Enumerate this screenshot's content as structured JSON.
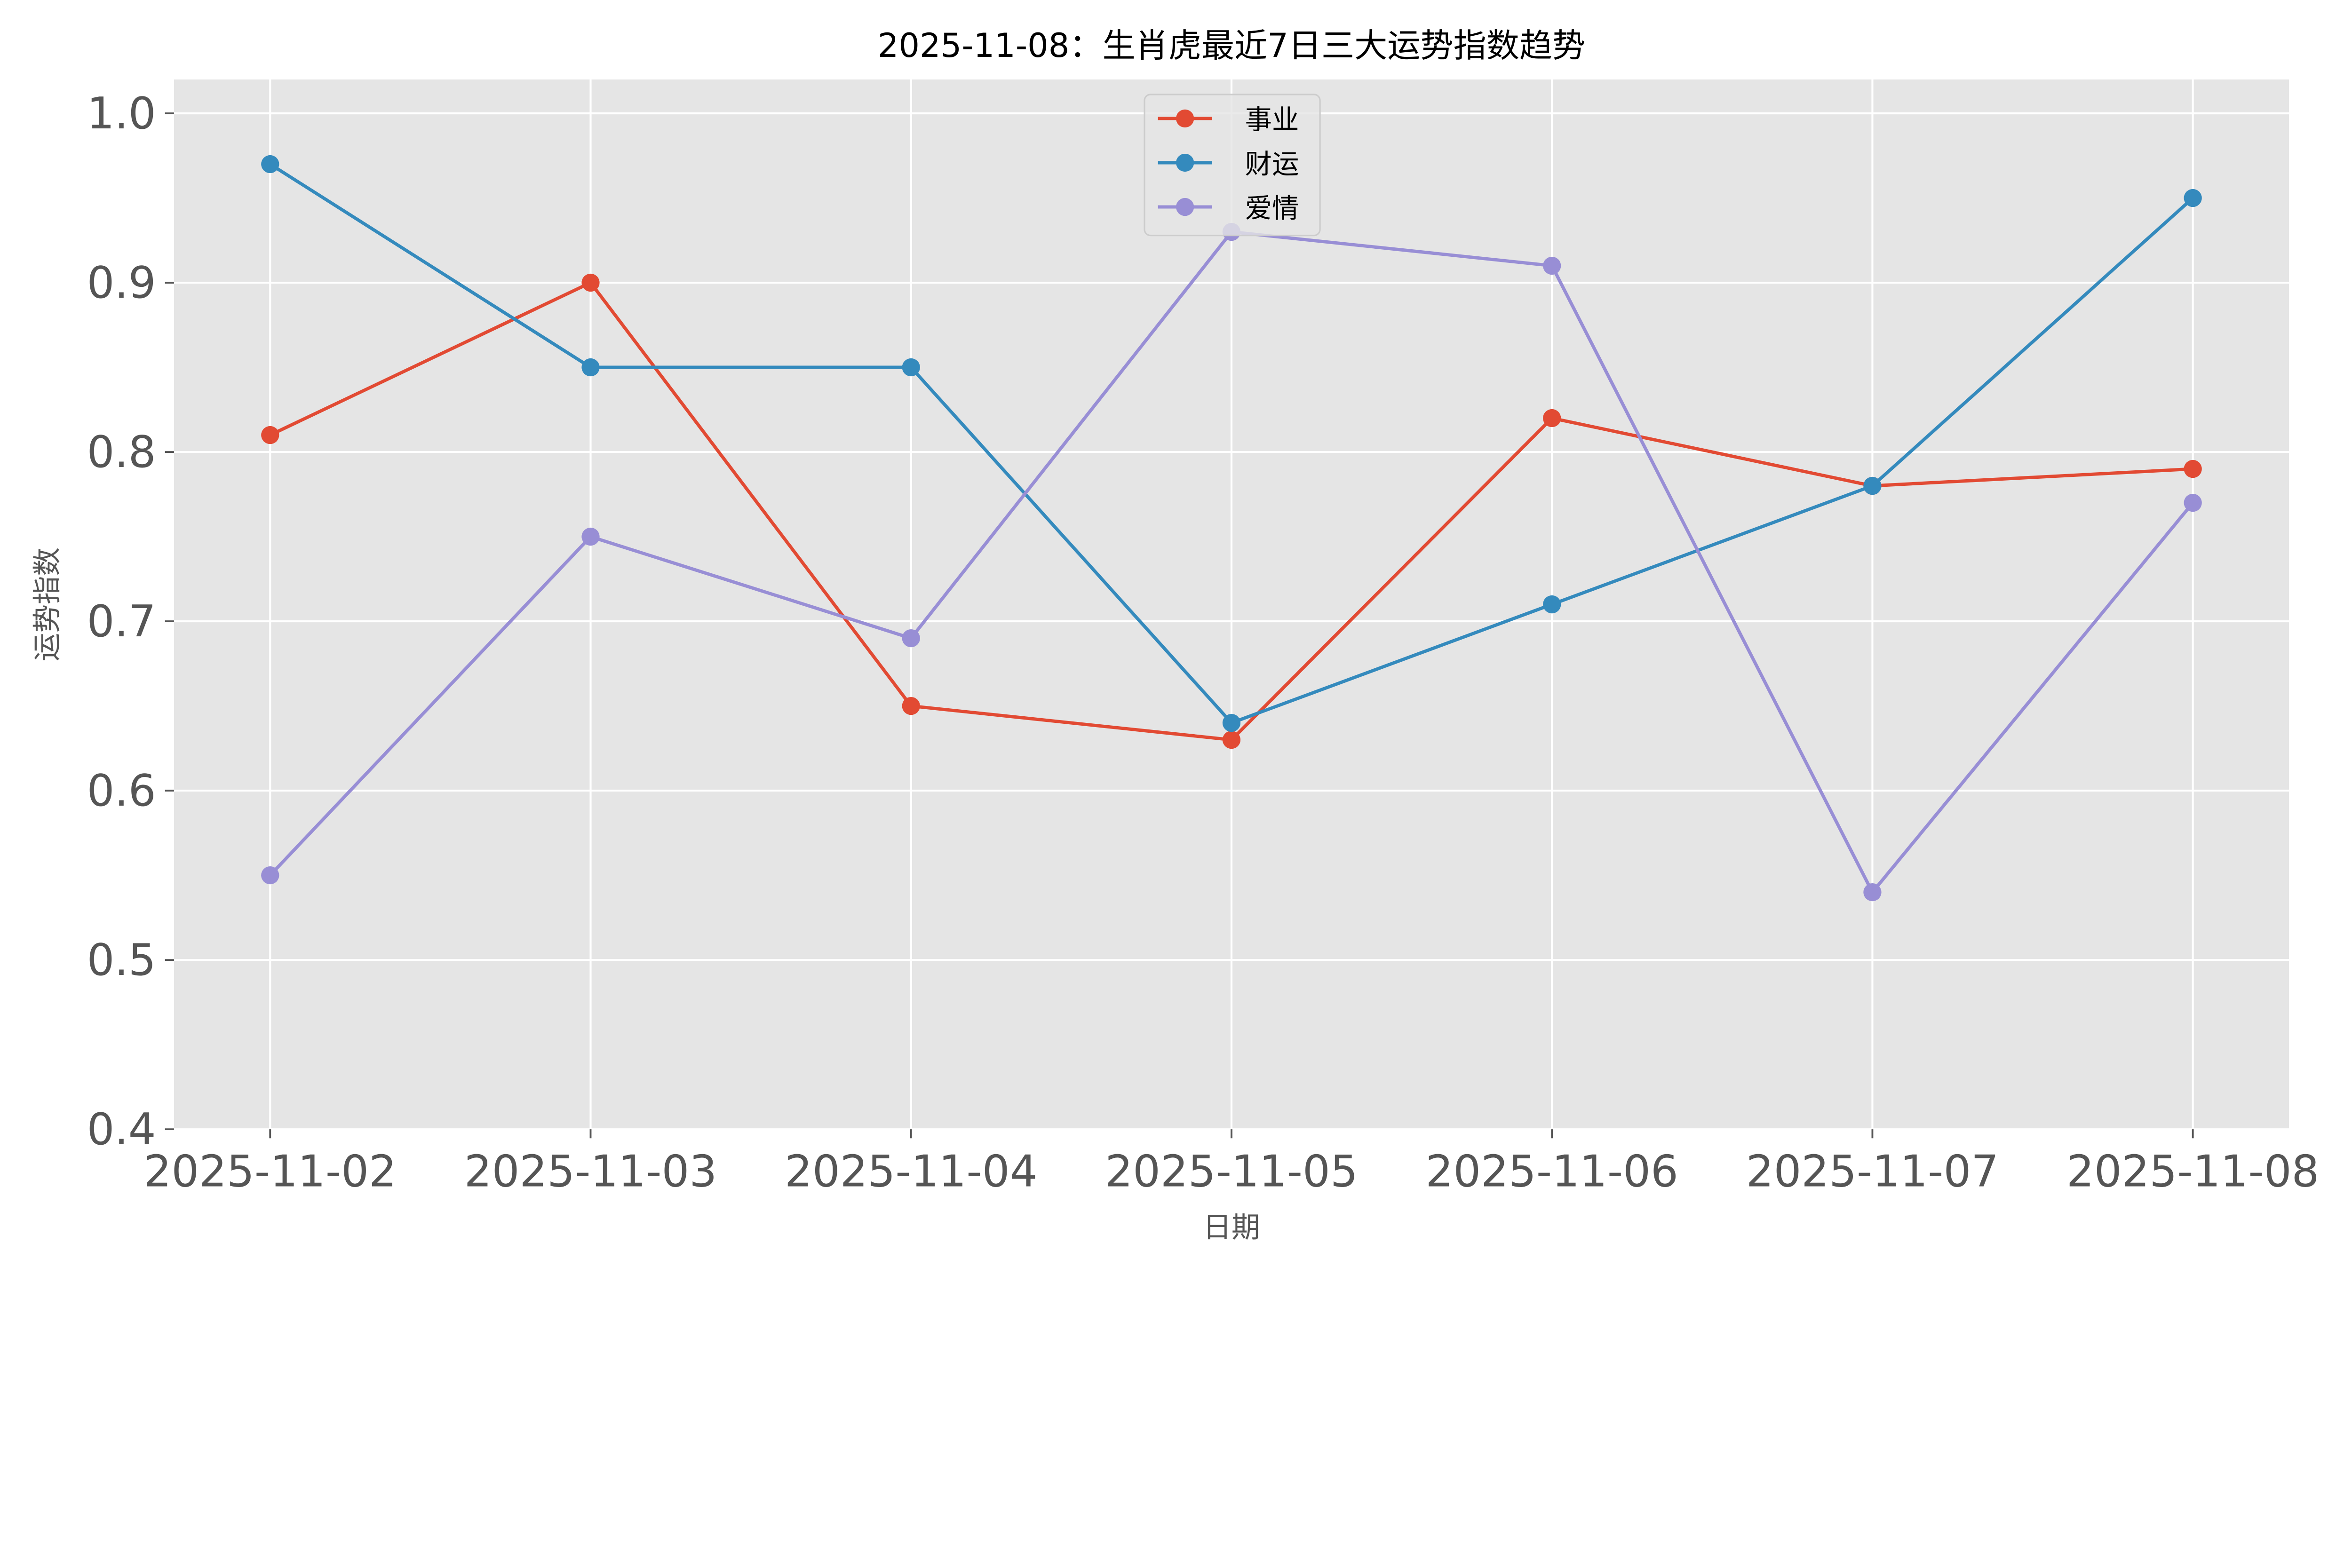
{
  "chart_data": {
    "type": "line",
    "title": "2025-11-08：生肖虎最近7日三大运势指数趋势",
    "xlabel": "日期",
    "ylabel": "运势指数",
    "categories": [
      "2025-11-02",
      "2025-11-03",
      "2025-11-04",
      "2025-11-05",
      "2025-11-06",
      "2025-11-07",
      "2025-11-08"
    ],
    "ylim": [
      0.4,
      1.02
    ],
    "yticks": [
      "0.4",
      "0.5",
      "0.6",
      "0.7",
      "0.8",
      "0.9",
      "1.0"
    ],
    "grid": true,
    "legend_position": "top-center",
    "series": [
      {
        "name": "事业",
        "color": "#E24A33",
        "values": [
          0.81,
          0.9,
          0.65,
          0.63,
          0.82,
          0.78,
          0.79
        ]
      },
      {
        "name": "财运",
        "color": "#348ABD",
        "values": [
          0.97,
          0.85,
          0.85,
          0.64,
          0.71,
          0.78,
          0.95
        ]
      },
      {
        "name": "爱情",
        "color": "#988ED5",
        "values": [
          0.55,
          0.75,
          0.69,
          0.93,
          0.91,
          0.54,
          0.77
        ]
      }
    ],
    "style": {
      "axes_background": "#E5E5E5",
      "grid_color": "#FFFFFF",
      "tick_color": "#555555"
    }
  }
}
